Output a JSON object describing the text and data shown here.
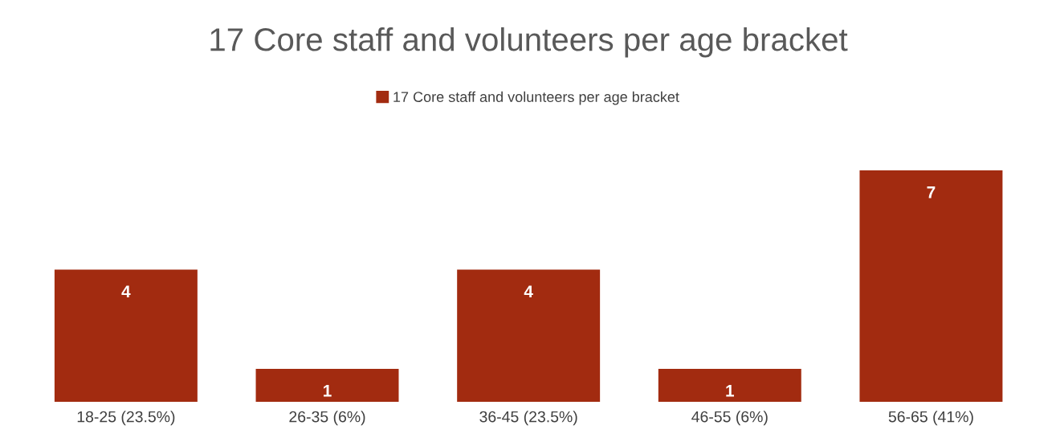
{
  "chart_data": {
    "type": "bar",
    "title": "17 Core staff and volunteers per age bracket",
    "categories": [
      "18-25 (23.5%)",
      "26-35 (6%)",
      "36-45 (23.5%)",
      "46-55 (6%)",
      "56-65 (41%)"
    ],
    "series": [
      {
        "name": "17 Core staff and volunteers per age bracket",
        "color": "#a22b10",
        "values": [
          4,
          1,
          4,
          1,
          7
        ]
      }
    ],
    "data_labels": true,
    "legend": "top",
    "grid": false,
    "tick_labels": "x"
  }
}
